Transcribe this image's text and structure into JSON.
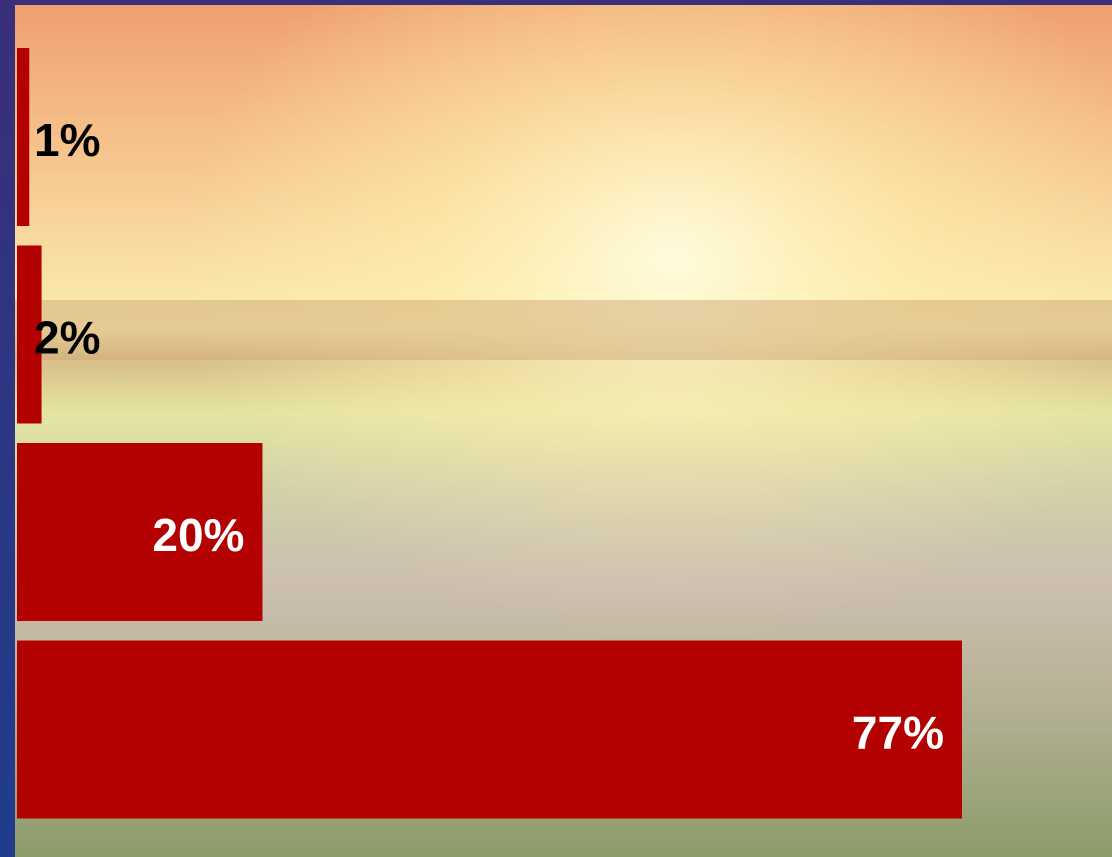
{
  "chart_data": {
    "type": "bar",
    "orientation": "horizontal",
    "values": [
      1,
      2,
      20,
      77
    ],
    "value_labels": [
      "1%",
      "2%",
      "20%",
      "77%"
    ],
    "color": "#b30000"
  }
}
